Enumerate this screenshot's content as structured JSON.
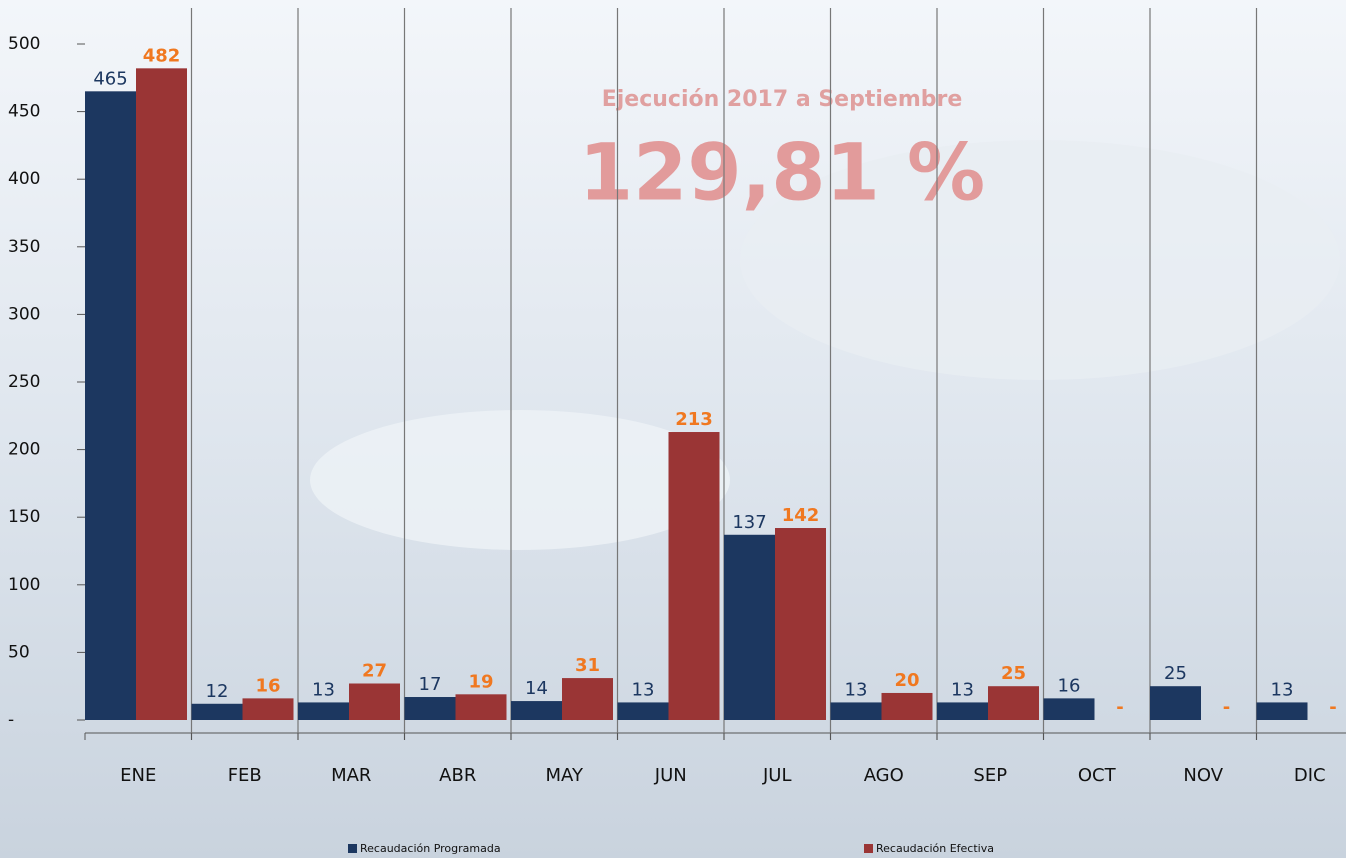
{
  "chart_data": {
    "type": "bar",
    "title": "Ejecución 2017 a Septiembre",
    "annotation": "129,81 %",
    "categories": [
      "ENE",
      "FEB",
      "MAR",
      "ABR",
      "MAY",
      "JUN",
      "JUL",
      "AGO",
      "SEP",
      "OCT",
      "NOV",
      "DIC"
    ],
    "series": [
      {
        "name": "Recaudación Programada",
        "color": "#1c3760",
        "label_color": "#1c3760",
        "values": [
          465,
          12,
          13,
          17,
          14,
          13,
          137,
          13,
          13,
          16,
          25,
          13
        ]
      },
      {
        "name": "Recaudación Efectiva",
        "color": "#9a3535",
        "label_color": "#f07820",
        "values": [
          482,
          16,
          27,
          19,
          31,
          213,
          142,
          20,
          25,
          0,
          0,
          0
        ],
        "value_labels": [
          "482",
          "16",
          "27",
          "19",
          "31",
          "213",
          "142",
          "20",
          "25",
          "-",
          "-",
          "-"
        ]
      }
    ],
    "ylim": [
      0,
      500
    ],
    "yticks": [
      {
        "value": 0,
        "label": "-"
      },
      50,
      100,
      150,
      200,
      250,
      300,
      350,
      400,
      450,
      500
    ],
    "grid": "x"
  }
}
